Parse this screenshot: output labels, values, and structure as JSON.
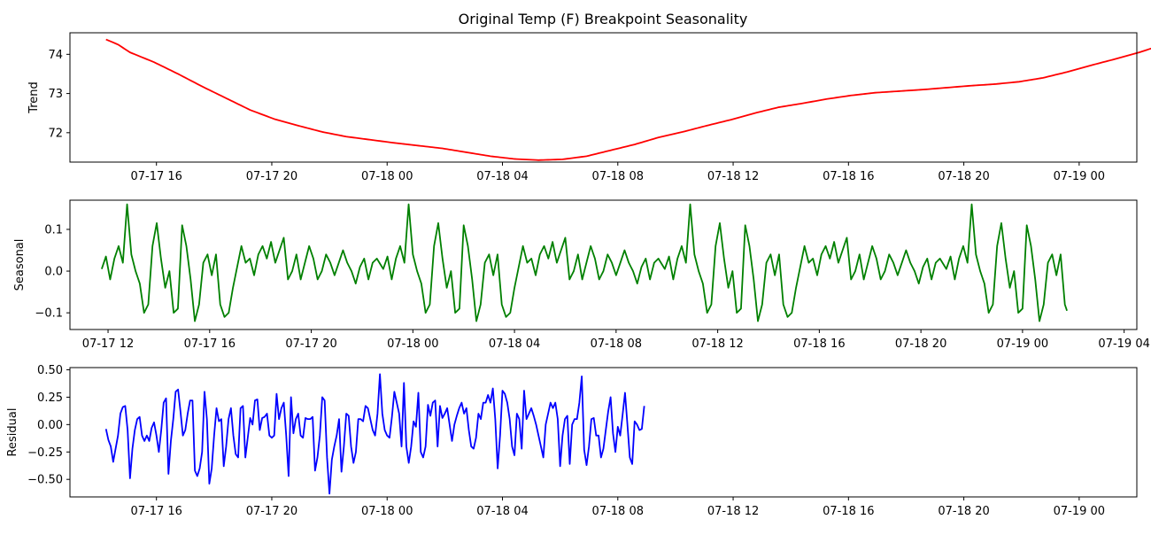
{
  "chart_data": [
    {
      "type": "line",
      "title": "Original Temp (F) Breakpoint Seasonality",
      "xlabel": "",
      "ylabel": "Trend",
      "color": "#ff0000",
      "x_ticks": [
        "07-17 16",
        "07-17 20",
        "07-18 00",
        "07-18 04",
        "07-18 08",
        "07-18 12",
        "07-18 16",
        "07-18 20",
        "07-19 00"
      ],
      "y_ticks": [
        "72",
        "73",
        "74"
      ],
      "x_range": [
        "2024-07-17T13:00",
        "2024-07-19T02:00"
      ],
      "ylim": [
        71.25,
        74.55
      ],
      "x_start": "2024-07-17T14:15",
      "x_step_minutes": 5,
      "control_points": [
        [
          0,
          74.38
        ],
        [
          5,
          74.25
        ],
        [
          10,
          74.05
        ],
        [
          20,
          73.8
        ],
        [
          30,
          73.5
        ],
        [
          40,
          73.18
        ],
        [
          50,
          72.88
        ],
        [
          60,
          72.58
        ],
        [
          70,
          72.35
        ],
        [
          80,
          72.18
        ],
        [
          90,
          72.02
        ],
        [
          100,
          71.9
        ],
        [
          110,
          71.82
        ],
        [
          120,
          71.74
        ],
        [
          130,
          71.67
        ],
        [
          140,
          71.6
        ],
        [
          150,
          71.5
        ],
        [
          160,
          71.4
        ],
        [
          170,
          71.33
        ],
        [
          180,
          71.3
        ],
        [
          190,
          71.32
        ],
        [
          200,
          71.4
        ],
        [
          210,
          71.55
        ],
        [
          220,
          71.7
        ],
        [
          230,
          71.88
        ],
        [
          240,
          72.02
        ],
        [
          250,
          72.18
        ],
        [
          260,
          72.33
        ],
        [
          270,
          72.5
        ],
        [
          280,
          72.65
        ],
        [
          290,
          72.75
        ],
        [
          300,
          72.86
        ],
        [
          310,
          72.95
        ],
        [
          320,
          73.02
        ],
        [
          330,
          73.06
        ],
        [
          340,
          73.1
        ],
        [
          350,
          73.15
        ],
        [
          360,
          73.2
        ],
        [
          370,
          73.24
        ],
        [
          380,
          73.3
        ],
        [
          390,
          73.4
        ],
        [
          400,
          73.55
        ],
        [
          410,
          73.72
        ],
        [
          420,
          73.88
        ],
        [
          430,
          74.05
        ],
        [
          440,
          74.25
        ],
        [
          446,
          74.42
        ]
      ],
      "point_count": 447
    },
    {
      "type": "line",
      "xlabel": "",
      "ylabel": "Seasonal",
      "color": "#008000",
      "x_ticks": [
        "07-17 12",
        "07-17 16",
        "07-17 20",
        "07-18 00",
        "07-18 04",
        "07-18 08",
        "07-18 12",
        "07-18 16",
        "07-18 20",
        "07-19 00",
        "07-19 04"
      ],
      "y_ticks": [
        "−0.1",
        "0.0",
        "0.1"
      ],
      "x_range": [
        "2024-07-17T10:30",
        "2024-07-19T04:30"
      ],
      "ylim": [
        -0.14,
        0.17
      ],
      "x_start": "2024-07-17T11:45",
      "x_step_minutes": 5,
      "period_points": 133,
      "cycle": [
        [
          0,
          0.005
        ],
        [
          2,
          0.035
        ],
        [
          4,
          -0.02
        ],
        [
          6,
          0.03
        ],
        [
          8,
          0.06
        ],
        [
          10,
          0.02
        ],
        [
          12,
          0.16
        ],
        [
          14,
          0.04
        ],
        [
          16,
          0.0
        ],
        [
          18,
          -0.03
        ],
        [
          20,
          -0.1
        ],
        [
          22,
          -0.08
        ],
        [
          24,
          0.06
        ],
        [
          26,
          0.115
        ],
        [
          28,
          0.03
        ],
        [
          30,
          -0.04
        ],
        [
          32,
          0.0
        ],
        [
          34,
          -0.1
        ],
        [
          36,
          -0.09
        ],
        [
          38,
          0.11
        ],
        [
          40,
          0.06
        ],
        [
          42,
          -0.02
        ],
        [
          44,
          -0.12
        ],
        [
          46,
          -0.08
        ],
        [
          48,
          0.02
        ],
        [
          50,
          0.04
        ],
        [
          52,
          -0.01
        ],
        [
          54,
          0.04
        ],
        [
          56,
          -0.08
        ],
        [
          58,
          -0.11
        ],
        [
          60,
          -0.1
        ],
        [
          62,
          -0.04
        ],
        [
          64,
          0.01
        ],
        [
          66,
          0.06
        ],
        [
          68,
          0.02
        ],
        [
          70,
          0.03
        ],
        [
          72,
          -0.01
        ],
        [
          74,
          0.04
        ],
        [
          76,
          0.06
        ],
        [
          78,
          0.03
        ],
        [
          80,
          0.07
        ],
        [
          82,
          0.02
        ],
        [
          84,
          0.05
        ],
        [
          86,
          0.08
        ],
        [
          88,
          -0.02
        ],
        [
          90,
          0.0
        ],
        [
          92,
          0.04
        ],
        [
          94,
          -0.02
        ],
        [
          96,
          0.02
        ],
        [
          98,
          0.06
        ],
        [
          100,
          0.03
        ],
        [
          102,
          -0.02
        ],
        [
          104,
          0.0
        ],
        [
          106,
          0.04
        ],
        [
          108,
          0.02
        ],
        [
          110,
          -0.01
        ],
        [
          112,
          0.02
        ],
        [
          114,
          0.05
        ],
        [
          116,
          0.02
        ],
        [
          118,
          0.0
        ],
        [
          120,
          -0.03
        ],
        [
          122,
          0.01
        ],
        [
          124,
          0.03
        ],
        [
          126,
          -0.02
        ],
        [
          128,
          0.02
        ],
        [
          130,
          0.03
        ],
        [
          133,
          0.005
        ]
      ],
      "point_count": 457
    },
    {
      "type": "line",
      "xlabel": "",
      "ylabel": "Residual",
      "color": "#0000ff",
      "x_ticks": [
        "07-17 16",
        "07-17 20",
        "07-18 00",
        "07-18 04",
        "07-18 08",
        "07-18 12",
        "07-18 16",
        "07-18 20",
        "07-19 00"
      ],
      "y_ticks": [
        "−0.50",
        "−0.25",
        "0.00",
        "0.25",
        "0.50"
      ],
      "x_range": [
        "2024-07-17T13:00",
        "2024-07-19T02:00"
      ],
      "ylim": [
        -0.66,
        0.52
      ],
      "x_start": "2024-07-17T14:15",
      "x_step_minutes": 5,
      "values": [
        -0.04,
        -0.14,
        -0.2,
        -0.34,
        -0.22,
        -0.1,
        0.1,
        0.16,
        0.17,
        -0.05,
        -0.49,
        -0.22,
        -0.05,
        0.05,
        0.07,
        -0.1,
        -0.15,
        -0.1,
        -0.15,
        -0.03,
        0.02,
        -0.1,
        -0.25,
        -0.05,
        0.2,
        0.24,
        -0.45,
        -0.15,
        0.05,
        0.3,
        0.32,
        0.12,
        -0.1,
        -0.05,
        0.1,
        0.22,
        0.22,
        -0.42,
        -0.47,
        -0.4,
        -0.25,
        0.3,
        0.05,
        -0.54,
        -0.4,
        -0.1,
        0.15,
        0.03,
        0.05,
        -0.38,
        -0.2,
        0.05,
        0.15,
        -0.1,
        -0.27,
        -0.3,
        0.15,
        0.17,
        -0.3,
        -0.12,
        0.06,
        0.0,
        0.22,
        0.23,
        -0.05,
        0.06,
        0.07,
        0.1,
        -0.1,
        -0.12,
        -0.1,
        0.28,
        0.05,
        0.15,
        0.2,
        -0.1,
        -0.47,
        0.25,
        -0.08,
        0.05,
        0.1,
        -0.1,
        -0.12,
        0.06,
        0.05,
        0.05,
        0.07,
        -0.42,
        -0.3,
        -0.1,
        0.25,
        0.22,
        -0.3,
        -0.63,
        -0.32,
        -0.2,
        -0.1,
        0.05,
        -0.43,
        -0.2,
        0.1,
        0.08,
        -0.2,
        -0.35,
        -0.25,
        0.05,
        0.05,
        0.03,
        0.17,
        0.15,
        0.05,
        -0.05,
        -0.1,
        0.1,
        0.46,
        0.1,
        -0.05,
        -0.1,
        -0.12,
        0.07,
        0.3,
        0.2,
        0.1,
        -0.2,
        0.38,
        -0.2,
        -0.35,
        -0.2,
        0.03,
        -0.02,
        0.29,
        -0.25,
        -0.3,
        -0.2,
        0.18,
        0.08,
        0.2,
        0.22,
        -0.2,
        0.17,
        0.06,
        0.1,
        0.15,
        0.0,
        -0.15,
        0.0,
        0.08,
        0.15,
        0.2,
        0.1,
        0.15,
        -0.05,
        -0.2,
        -0.22,
        -0.12,
        0.1,
        0.05,
        0.2,
        0.2,
        0.27,
        0.2,
        0.33,
        0.05,
        -0.4,
        -0.1,
        0.31,
        0.28,
        0.2,
        0.05,
        -0.2,
        -0.28,
        0.1,
        0.05,
        -0.22,
        0.31,
        0.05,
        0.1,
        0.15,
        0.08,
        0.0,
        -0.1,
        -0.2,
        -0.3,
        0.0,
        0.1,
        0.2,
        0.15,
        0.2,
        0.05,
        -0.38,
        -0.1,
        0.05,
        0.08,
        -0.36,
        0.0,
        0.05,
        0.05,
        0.2,
        0.44,
        -0.23,
        -0.37,
        -0.2,
        0.05,
        0.06,
        -0.1,
        -0.1,
        -0.3,
        -0.22,
        -0.05,
        0.12,
        0.25,
        -0.08,
        -0.25,
        -0.02,
        -0.1,
        0.09,
        0.29,
        0.0,
        -0.3,
        -0.36,
        0.03,
        0.0,
        -0.05,
        -0.04,
        0.17
      ]
    }
  ]
}
